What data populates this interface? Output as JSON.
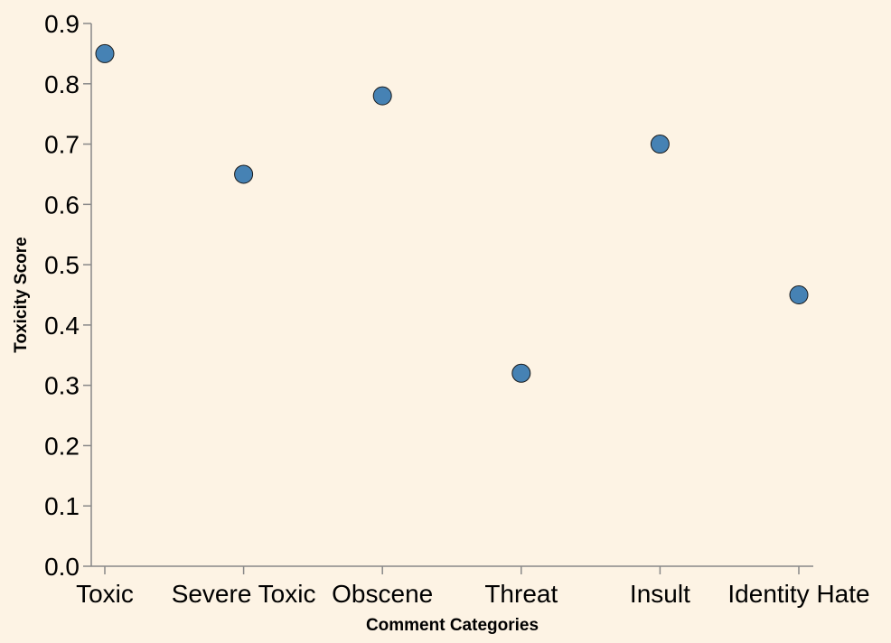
{
  "chart_data": {
    "type": "scatter",
    "categories": [
      "Toxic",
      "Severe Toxic",
      "Obscene",
      "Threat",
      "Insult",
      "Identity Hate"
    ],
    "values": [
      0.85,
      0.65,
      0.78,
      0.32,
      0.7,
      0.45
    ],
    "xlabel": "Comment Categories",
    "ylabel": "Toxicity Score",
    "ylim": [
      0,
      0.9
    ],
    "yticks": [
      "0.0",
      "0.1",
      "0.2",
      "0.3",
      "0.4",
      "0.5",
      "0.6",
      "0.7",
      "0.8",
      "0.9"
    ],
    "grid": false,
    "colors": {
      "background": "#fdf3e4",
      "point_fill": "#4682b4",
      "point_stroke": "#1a1a1a",
      "axis": "#888888"
    }
  }
}
